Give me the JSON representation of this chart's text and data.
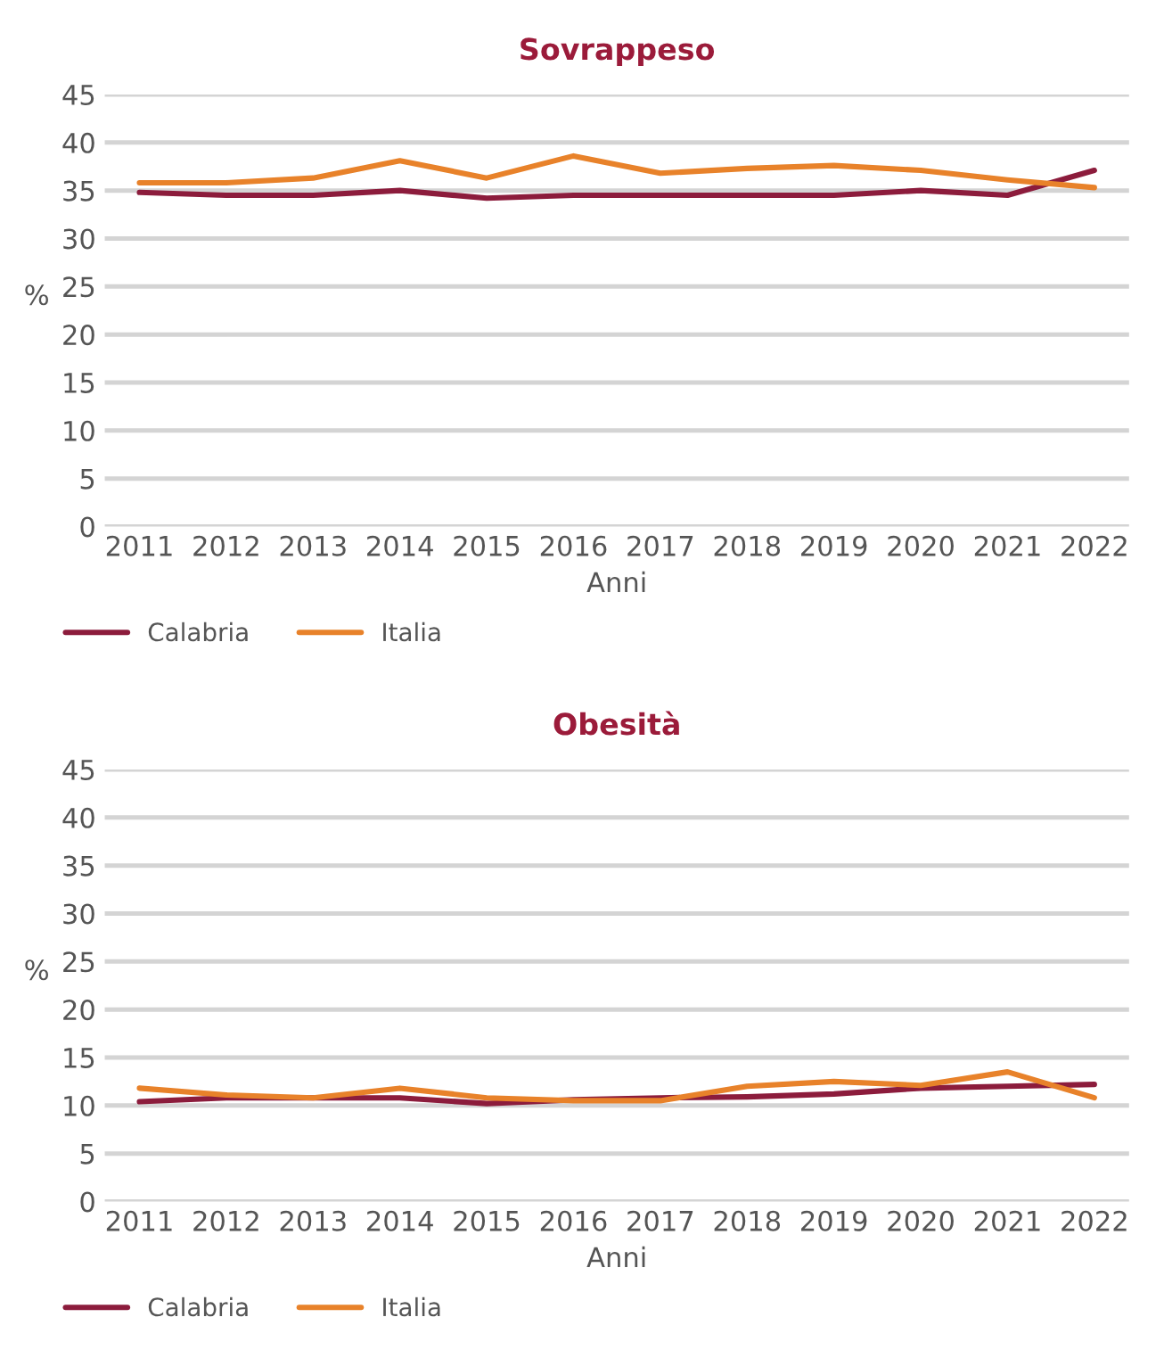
{
  "chart_data": [
    {
      "type": "line",
      "title": "Sovrappeso",
      "xlabel": "Anni",
      "ylabel": "%",
      "categories": [
        "2011",
        "2012",
        "2013",
        "2014",
        "2015",
        "2016",
        "2017",
        "2018",
        "2019",
        "2020",
        "2021",
        "2022"
      ],
      "series": [
        {
          "name": "Calabria",
          "color": "#8c1c3c",
          "values": [
            34.8,
            34.5,
            34.5,
            35.0,
            34.2,
            34.5,
            34.5,
            34.5,
            34.5,
            35.0,
            34.5,
            37.1
          ]
        },
        {
          "name": "Italia",
          "color": "#e8822a",
          "values": [
            35.8,
            35.8,
            36.3,
            38.1,
            36.3,
            38.6,
            36.8,
            37.3,
            37.6,
            37.1,
            36.1,
            35.3
          ]
        }
      ],
      "ylim": [
        0,
        45
      ],
      "yticks": [
        0,
        5,
        10,
        15,
        20,
        25,
        30,
        35,
        40,
        45
      ],
      "grid": "y",
      "legend": "bottom left"
    },
    {
      "type": "line",
      "title": "Obesità",
      "xlabel": "Anni",
      "ylabel": "%",
      "categories": [
        "2011",
        "2012",
        "2013",
        "2014",
        "2015",
        "2016",
        "2017",
        "2018",
        "2019",
        "2020",
        "2021",
        "2022"
      ],
      "series": [
        {
          "name": "Calabria",
          "color": "#8c1c3c",
          "values": [
            10.4,
            10.8,
            10.8,
            10.8,
            10.2,
            10.6,
            10.8,
            10.9,
            11.2,
            11.8,
            12.0,
            12.2
          ]
        },
        {
          "name": "Italia",
          "color": "#e8822a",
          "values": [
            11.8,
            11.1,
            10.8,
            11.8,
            10.8,
            10.5,
            10.5,
            12.0,
            12.5,
            12.1,
            13.5,
            10.8
          ]
        }
      ],
      "ylim": [
        0,
        45
      ],
      "yticks": [
        0,
        5,
        10,
        15,
        20,
        25,
        30,
        35,
        40,
        45
      ],
      "grid": "y",
      "legend": "bottom left"
    }
  ]
}
